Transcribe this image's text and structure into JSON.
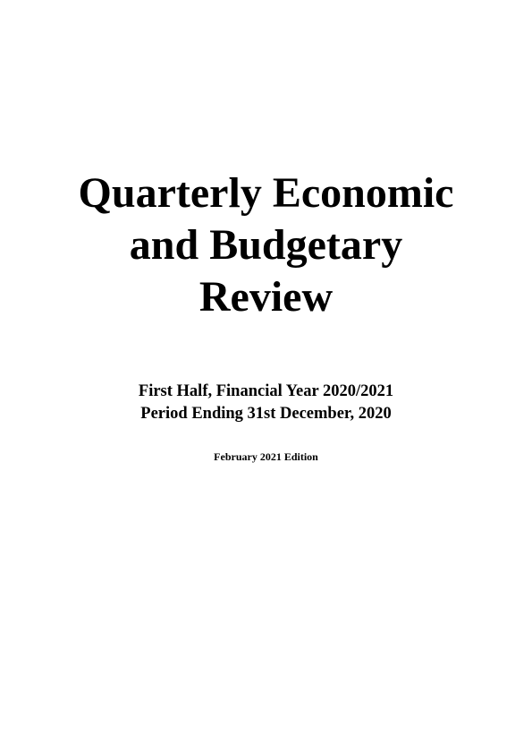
{
  "title": {
    "lines": [
      "Quarterly Economic",
      "and Budgetary",
      "Review"
    ]
  },
  "subtitle": {
    "lines": [
      "First Half, Financial Year 2020/2021",
      "Period Ending 31st December, 2020"
    ]
  },
  "edition": "February 2021 Edition"
}
